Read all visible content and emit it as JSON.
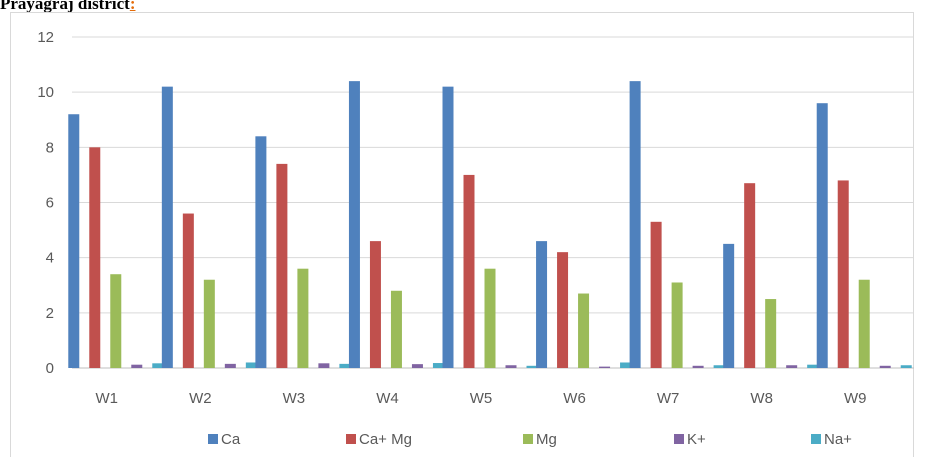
{
  "heading": {
    "text": "Prayagraj district",
    "colon": ":"
  },
  "chart_data": {
    "type": "bar",
    "title": "",
    "xlabel": "",
    "ylabel": "",
    "ylim": [
      0,
      12
    ],
    "yticks": [
      0,
      2,
      4,
      6,
      8,
      10,
      12
    ],
    "grid": true,
    "legend": "bottom",
    "categories": [
      "W1",
      "W2",
      "W3",
      "W4",
      "W5",
      "W6",
      "W7",
      "W8",
      "W9"
    ],
    "series": [
      {
        "name": "Ca",
        "color": "#4f81bd",
        "values": [
          9.2,
          10.2,
          8.4,
          10.4,
          10.2,
          4.6,
          10.4,
          4.5,
          9.6
        ]
      },
      {
        "name": "Ca+ Mg",
        "color": "#c0504d",
        "values": [
          8.0,
          5.6,
          7.4,
          4.6,
          7.0,
          4.2,
          5.3,
          6.7,
          6.8
        ]
      },
      {
        "name": "Mg",
        "color": "#9bbb59",
        "values": [
          3.4,
          3.2,
          3.6,
          2.8,
          3.6,
          2.7,
          3.1,
          2.5,
          3.2
        ]
      },
      {
        "name": "K+",
        "color": "#8064a2",
        "values": [
          0.12,
          0.15,
          0.17,
          0.14,
          0.1,
          0.05,
          0.08,
          0.1,
          0.08
        ]
      },
      {
        "name": "Na+",
        "color": "#4bacc6",
        "values": [
          0.17,
          0.2,
          0.15,
          0.18,
          0.08,
          0.2,
          0.1,
          0.12,
          0.1
        ]
      }
    ]
  }
}
